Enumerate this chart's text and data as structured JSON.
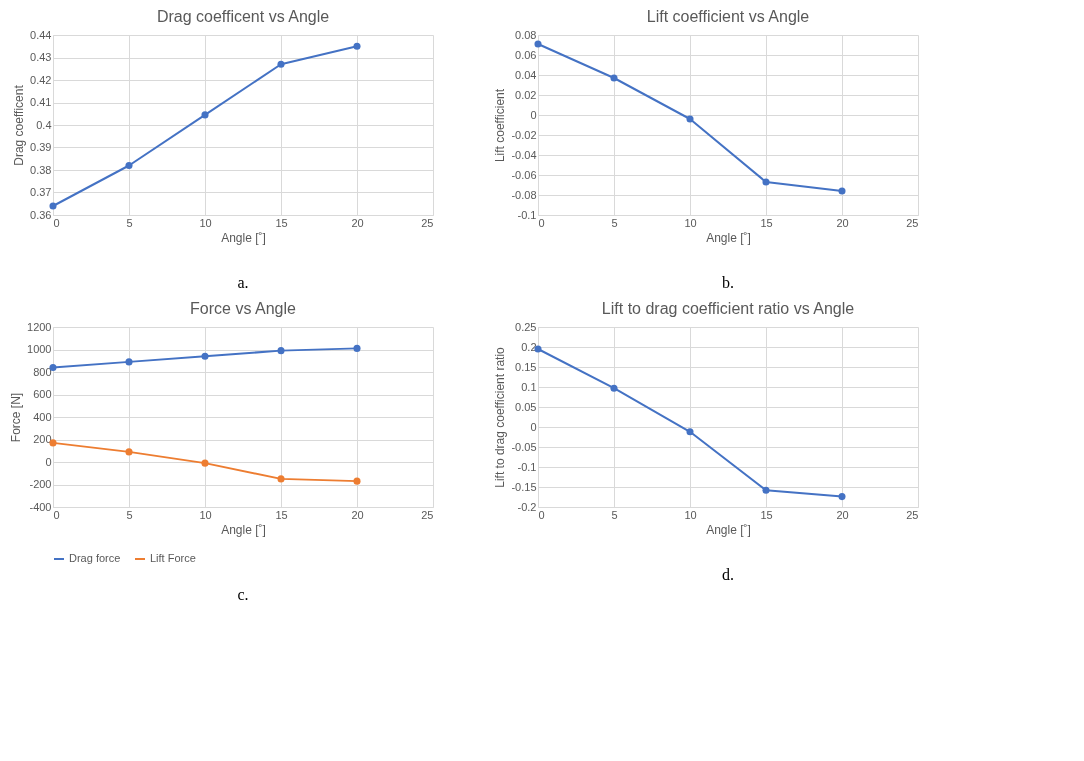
{
  "chart_data": [
    {
      "type": "line",
      "title": "Drag coefficent vs Angle",
      "xlabel": "Angle [˚]",
      "ylabel": "Drag coefficent",
      "x": [
        0,
        5,
        10,
        15,
        20
      ],
      "series": [
        {
          "color": "#4472c4",
          "values": [
            0.364,
            0.382,
            0.4045,
            0.427,
            0.435
          ]
        }
      ],
      "xlim": [
        0,
        25
      ],
      "xticks": [
        0,
        5,
        10,
        15,
        20,
        25
      ],
      "ylim": [
        0.36,
        0.44
      ],
      "yticks": [
        0.36,
        0.37,
        0.38,
        0.39,
        0.4,
        0.41,
        0.42,
        0.43,
        0.44
      ],
      "grid": true,
      "marker": "circle",
      "annotations": [
        "a."
      ]
    },
    {
      "type": "line",
      "title": "Lift coefficient vs Angle",
      "xlabel": "Angle [˚]",
      "ylabel": "Lift coefficient",
      "x": [
        0,
        5,
        10,
        15,
        20
      ],
      "series": [
        {
          "color": "#4472c4",
          "values": [
            0.071,
            0.037,
            -0.004,
            -0.067,
            -0.076
          ]
        }
      ],
      "xlim": [
        0,
        25
      ],
      "xticks": [
        0,
        5,
        10,
        15,
        20,
        25
      ],
      "ylim": [
        -0.1,
        0.08
      ],
      "yticks": [
        -0.1,
        -0.08,
        -0.06,
        -0.04,
        -0.02,
        0,
        0.02,
        0.04,
        0.06,
        0.08
      ],
      "grid": true,
      "marker": "circle",
      "annotations": [
        "b."
      ]
    },
    {
      "type": "line",
      "title": "Force vs Angle",
      "xlabel": "Angle [˚]",
      "ylabel": "Force [N]",
      "x": [
        0,
        5,
        10,
        15,
        20
      ],
      "series": [
        {
          "name": "Drag force",
          "color": "#4472c4",
          "values": [
            840,
            890,
            940,
            990,
            1010
          ]
        },
        {
          "name": "Lift Force",
          "color": "#ed7d31",
          "values": [
            170,
            90,
            -10,
            -150,
            -170
          ]
        }
      ],
      "xlim": [
        0,
        25
      ],
      "xticks": [
        0,
        5,
        10,
        15,
        20,
        25
      ],
      "ylim": [
        -400,
        1200
      ],
      "yticks": [
        -400,
        -200,
        0,
        200,
        400,
        600,
        800,
        1000,
        1200
      ],
      "grid": true,
      "marker": "circle",
      "legend": "bottom",
      "annotations": [
        "c."
      ]
    },
    {
      "type": "line",
      "title": "Lift to drag coefficient ratio vs Angle",
      "xlabel": "Angle [˚]",
      "ylabel": "Lift to drag coefficient ratio",
      "x": [
        0,
        5,
        10,
        15,
        20
      ],
      "series": [
        {
          "color": "#4472c4",
          "values": [
            0.195,
            0.097,
            -0.012,
            -0.158,
            -0.174
          ]
        }
      ],
      "xlim": [
        0,
        25
      ],
      "xticks": [
        0,
        5,
        10,
        15,
        20,
        25
      ],
      "ylim": [
        -0.2,
        0.25
      ],
      "yticks": [
        -0.2,
        -0.15,
        -0.1,
        -0.05,
        0,
        0.05,
        0.1,
        0.15,
        0.2,
        0.25
      ],
      "grid": true,
      "marker": "circle",
      "annotations": [
        "d."
      ]
    }
  ]
}
